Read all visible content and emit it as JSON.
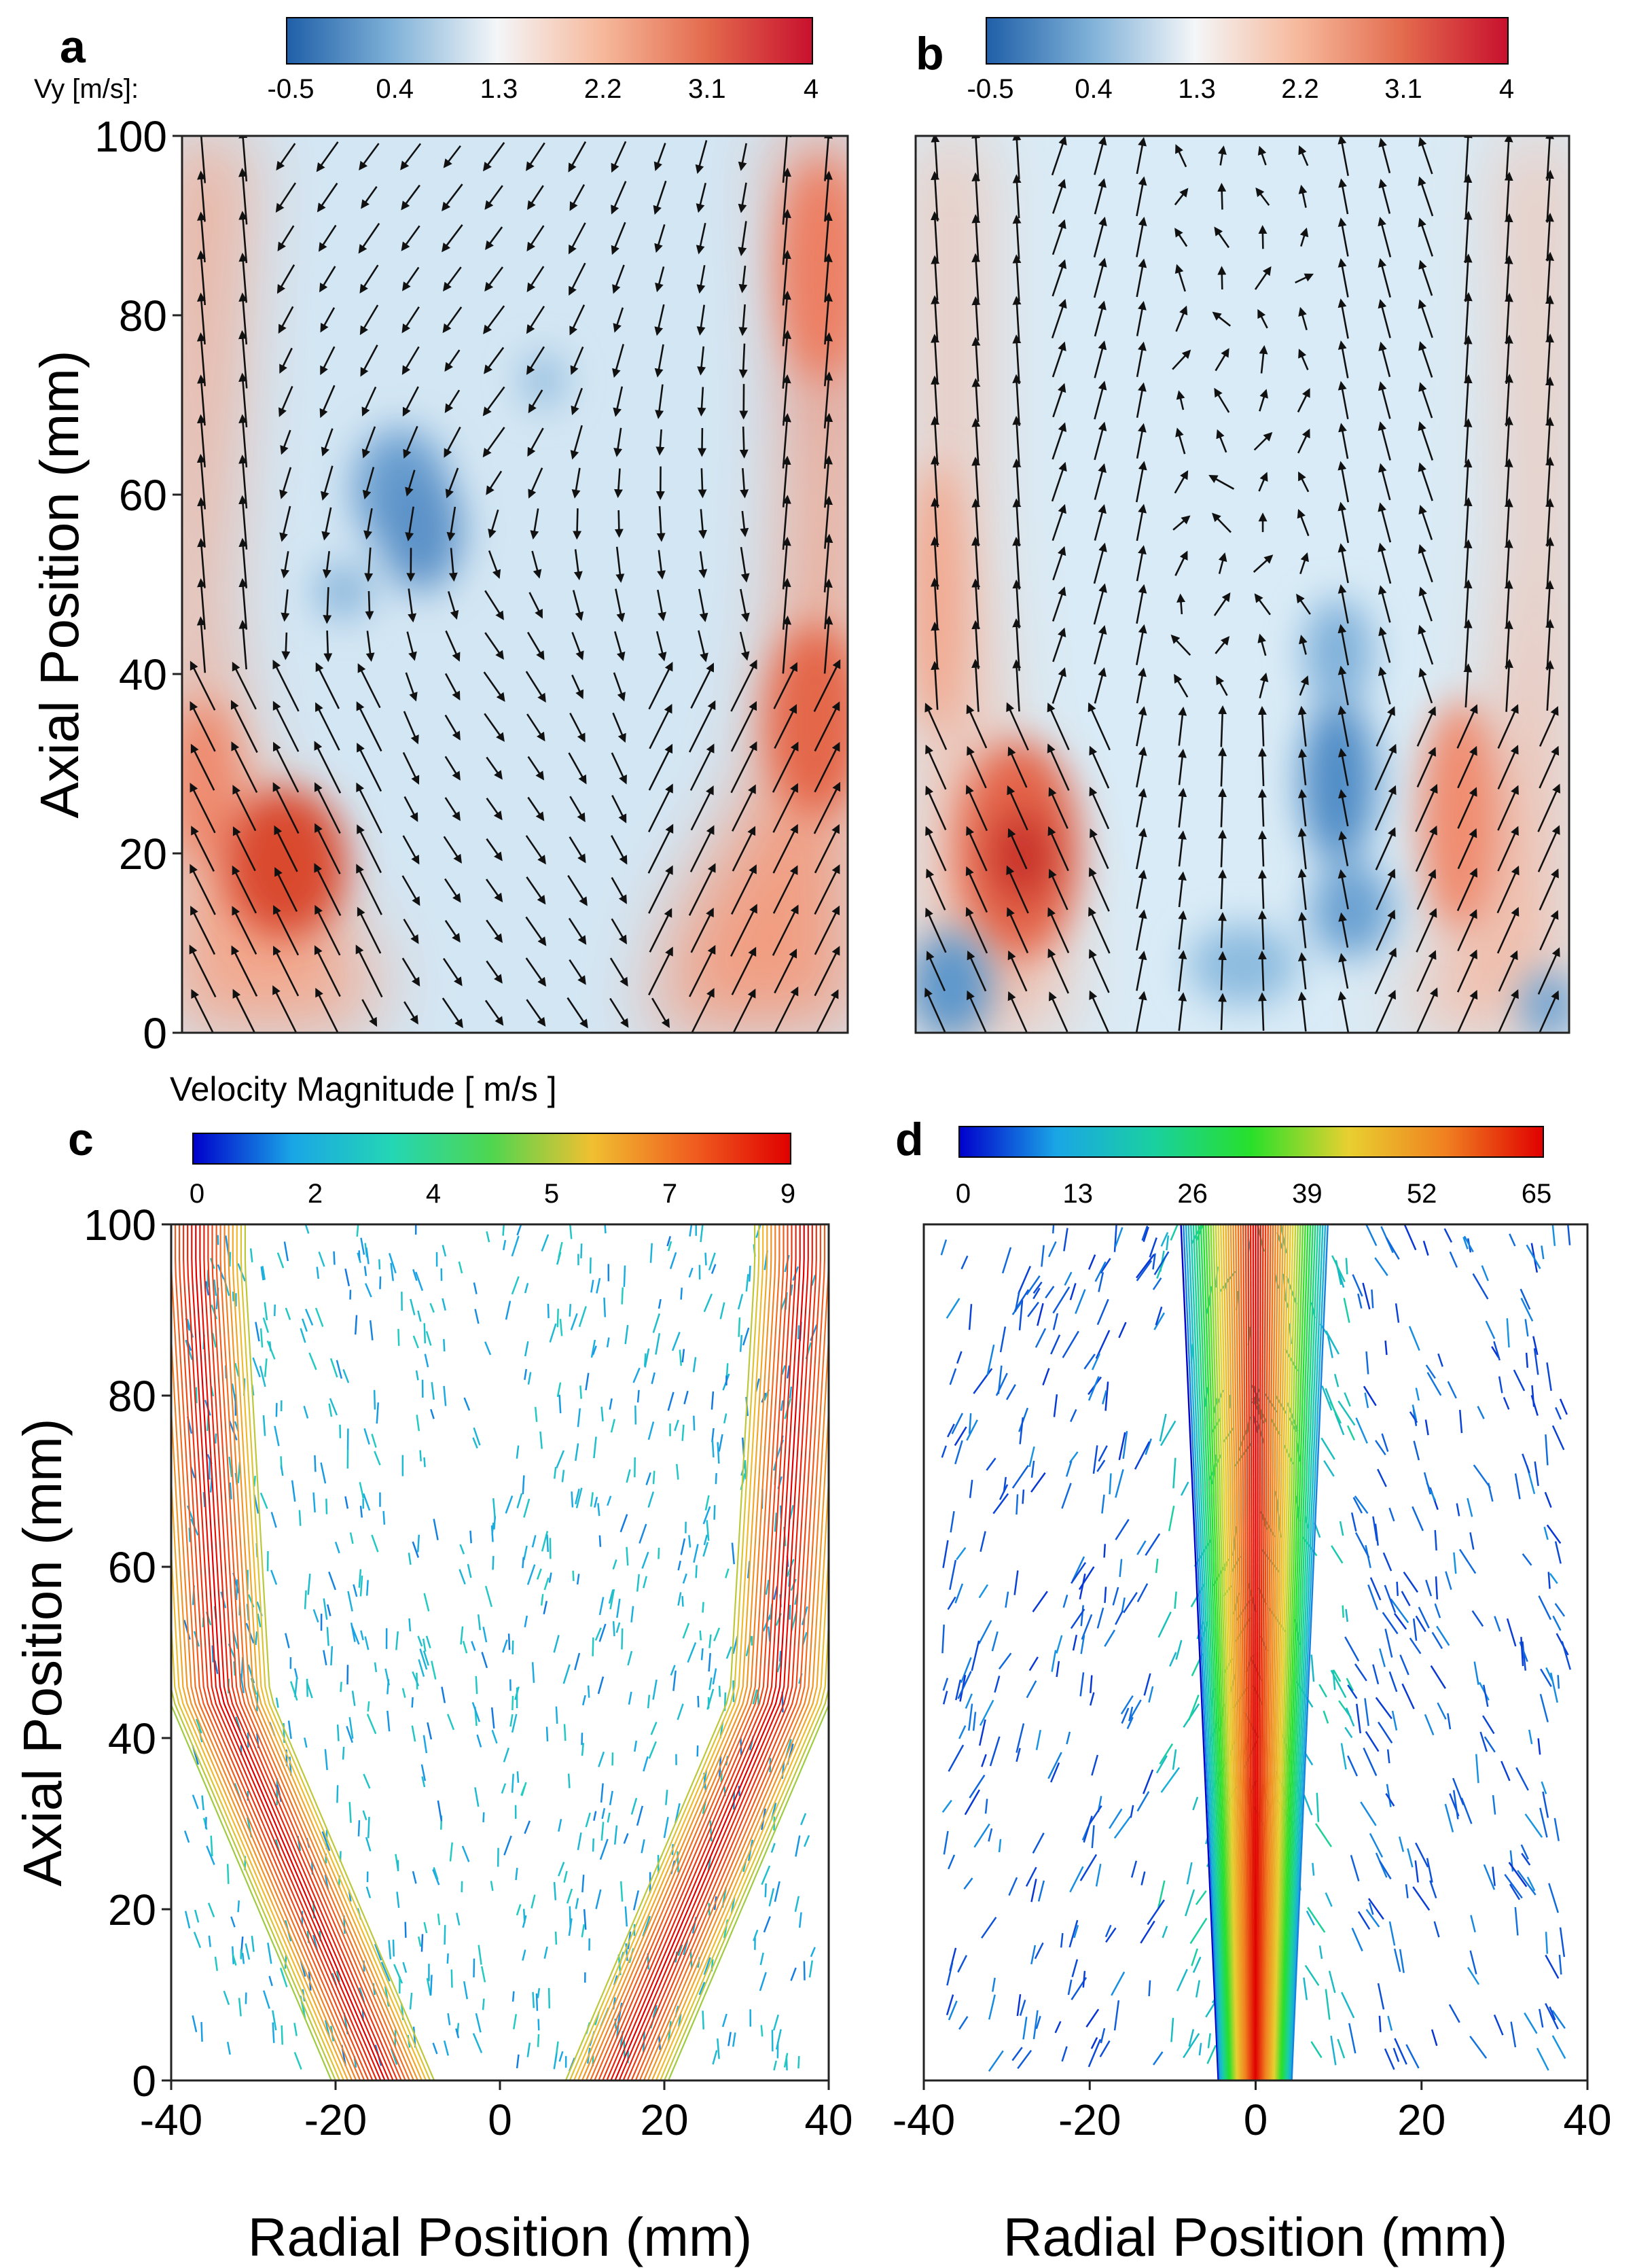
{
  "panels": {
    "a": {
      "label": "a",
      "colorbar": {
        "title": "Vy [m/s]:",
        "ticks": [
          "-0.5",
          "0.4",
          "1.3",
          "2.2",
          "3.1",
          "4"
        ],
        "colors": [
          "#1f5fa8",
          "#7fb1d8",
          "#f4f6f8",
          "#f6b89b",
          "#e36a4d",
          "#c8102e"
        ]
      }
    },
    "b": {
      "label": "b",
      "colorbar": {
        "ticks": [
          "-0.5",
          "0.4",
          "1.3",
          "2.2",
          "3.1",
          "4"
        ],
        "colors": [
          "#1f5fa8",
          "#7fb1d8",
          "#f4f6f8",
          "#f6b89b",
          "#e36a4d",
          "#c8102e"
        ]
      }
    },
    "c": {
      "label": "c",
      "colorbar": {
        "title": "Velocity Magnitude [ m/s ]",
        "ticks": [
          "0",
          "2",
          "4",
          "5",
          "7",
          "9"
        ],
        "colors": [
          "#0000cc",
          "#1aa6e6",
          "#24d6b4",
          "#4fd64f",
          "#f0c030",
          "#f06020",
          "#e00000"
        ]
      }
    },
    "d": {
      "label": "d",
      "colorbar": {
        "ticks": [
          "0",
          "13",
          "26",
          "39",
          "52",
          "65"
        ],
        "colors": [
          "#0000cc",
          "#1aa6e6",
          "#1ad0a0",
          "#28e02a",
          "#e8d030",
          "#f08020",
          "#e00000"
        ]
      }
    }
  },
  "axes": {
    "y_label": "Axial Position (mm)",
    "x_label": "Radial Position (mm)",
    "y_ticks": [
      "0",
      "20",
      "40",
      "60",
      "80",
      "100"
    ],
    "x_ticks_left": [
      "-40",
      "-20",
      "0",
      "20",
      "40"
    ],
    "x_ticks_right": [
      "-40",
      "-20",
      "0",
      "20",
      "40"
    ]
  },
  "chart_data": [
    {
      "type": "heatmap",
      "title": "a",
      "quantity": "Vy [m/s] with velocity vectors",
      "xlim": [
        -40,
        40
      ],
      "ylim": [
        0,
        100
      ],
      "clim": [
        -0.5,
        4
      ],
      "features": [
        {
          "x": -25,
          "y": 18,
          "vy": 3.6
        },
        {
          "x": 35,
          "y": 30,
          "vy": 2.8
        },
        {
          "x": -38,
          "y": 80,
          "vy": 2.2
        },
        {
          "x": 38,
          "y": 90,
          "vy": 2.6
        },
        {
          "x": -15,
          "y": 62,
          "vy": -0.4
        },
        {
          "x": -12,
          "y": 55,
          "vy": -0.4
        },
        {
          "x": -20,
          "y": 48,
          "vy": -0.2
        },
        {
          "x": 5,
          "y": 68,
          "vy": -0.1
        }
      ]
    },
    {
      "type": "heatmap",
      "title": "b",
      "quantity": "Vy [m/s] with velocity vectors",
      "xlim": [
        -40,
        40
      ],
      "ylim": [
        0,
        100
      ],
      "clim": [
        -0.5,
        4
      ],
      "features": [
        {
          "x": -25,
          "y": 20,
          "vy": 3.4
        },
        {
          "x": 32,
          "y": 20,
          "vy": 2.4
        },
        {
          "x": -38,
          "y": 70,
          "vy": 1.6
        },
        {
          "x": 38,
          "y": 70,
          "vy": 1.6
        },
        {
          "x": 8,
          "y": 28,
          "vy": -0.4
        },
        {
          "x": 6,
          "y": 42,
          "vy": -0.2
        },
        {
          "x": -38,
          "y": 8,
          "vy": -0.4
        }
      ]
    },
    {
      "type": "scatter",
      "title": "c",
      "quantity": "Velocity Magnitude [m/s] vectors",
      "xlim": [
        -40,
        40
      ],
      "ylim": [
        0,
        100
      ],
      "clim": [
        0,
        9
      ],
      "features": [
        {
          "x": -35,
          "y": 70,
          "v": 8.5
        },
        {
          "x": -32,
          "y": 40,
          "v": 8.0
        },
        {
          "x": -18,
          "y": 10,
          "v": 7.5
        },
        {
          "x": 35,
          "y": 70,
          "v": 8.5
        },
        {
          "x": 30,
          "y": 40,
          "v": 8.0
        },
        {
          "x": 15,
          "y": 10,
          "v": 7.0
        },
        {
          "x": 0,
          "y": 60,
          "v": 2.0
        }
      ]
    },
    {
      "type": "scatter",
      "title": "d",
      "quantity": "Velocity Magnitude [m/s] vectors",
      "xlim": [
        -40,
        40
      ],
      "ylim": [
        0,
        100
      ],
      "clim": [
        0,
        65
      ],
      "features": [
        {
          "x": 0,
          "y": 50,
          "v": 65
        },
        {
          "x": -4,
          "y": 60,
          "v": 35
        },
        {
          "x": 4,
          "y": 60,
          "v": 35
        },
        {
          "x": -20,
          "y": 60,
          "v": 8
        },
        {
          "x": 20,
          "y": 60,
          "v": 8
        }
      ]
    }
  ]
}
